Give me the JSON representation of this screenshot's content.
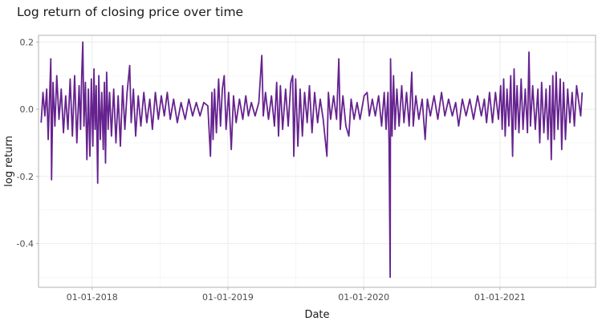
{
  "chart_data": {
    "type": "line",
    "title": "Log return of closing price over time",
    "xlabel": "Date",
    "ylabel": "log return",
    "x_axis": {
      "type": "date",
      "range": [
        "2017-08-10",
        "2021-09-15"
      ],
      "ticks": [
        {
          "date": "2018-01-01",
          "label": "01-01-2018"
        },
        {
          "date": "2019-01-01",
          "label": "01-01-2019"
        },
        {
          "date": "2020-01-01",
          "label": "01-01-2020"
        },
        {
          "date": "2021-01-01",
          "label": "01-01-2021"
        }
      ]
    },
    "y_axis": {
      "range": [
        -0.53,
        0.22
      ],
      "ticks": [
        {
          "value": 0.2,
          "label": "0.2"
        },
        {
          "value": 0.0,
          "label": "0.0"
        },
        {
          "value": -0.2,
          "label": "-0.2"
        },
        {
          "value": -0.4,
          "label": "-0.4"
        }
      ]
    },
    "grid": true,
    "legend": "none",
    "series": [
      {
        "color": "#66238f",
        "points": [
          [
            "2017-08-17",
            -0.04
          ],
          [
            "2017-08-22",
            0.05
          ],
          [
            "2017-08-27",
            -0.02
          ],
          [
            "2017-09-01",
            0.06
          ],
          [
            "2017-09-05",
            -0.09
          ],
          [
            "2017-09-08",
            0.01
          ],
          [
            "2017-09-12",
            0.15
          ],
          [
            "2017-09-14",
            -0.21
          ],
          [
            "2017-09-18",
            0.08
          ],
          [
            "2017-09-23",
            -0.05
          ],
          [
            "2017-09-28",
            0.1
          ],
          [
            "2017-10-04",
            -0.03
          ],
          [
            "2017-10-10",
            0.06
          ],
          [
            "2017-10-16",
            -0.07
          ],
          [
            "2017-10-22",
            0.04
          ],
          [
            "2017-10-28",
            -0.06
          ],
          [
            "2017-11-03",
            0.09
          ],
          [
            "2017-11-09",
            -0.08
          ],
          [
            "2017-11-15",
            0.1
          ],
          [
            "2017-11-21",
            -0.1
          ],
          [
            "2017-11-27",
            0.07
          ],
          [
            "2017-12-01",
            -0.06
          ],
          [
            "2017-12-04",
            0.1
          ],
          [
            "2017-12-07",
            0.2
          ],
          [
            "2017-12-10",
            -0.05
          ],
          [
            "2017-12-14",
            0.08
          ],
          [
            "2017-12-18",
            -0.15
          ],
          [
            "2017-12-22",
            0.06
          ],
          [
            "2017-12-26",
            -0.14
          ],
          [
            "2017-12-30",
            0.09
          ],
          [
            "2018-01-03",
            -0.11
          ],
          [
            "2018-01-06",
            0.12
          ],
          [
            "2018-01-09",
            -0.06
          ],
          [
            "2018-01-12",
            0.07
          ],
          [
            "2018-01-16",
            -0.22
          ],
          [
            "2018-01-19",
            0.1
          ],
          [
            "2018-01-23",
            -0.09
          ],
          [
            "2018-01-27",
            0.05
          ],
          [
            "2018-01-31",
            -0.12
          ],
          [
            "2018-02-03",
            0.08
          ],
          [
            "2018-02-06",
            -0.16
          ],
          [
            "2018-02-09",
            0.11
          ],
          [
            "2018-02-13",
            -0.06
          ],
          [
            "2018-02-17",
            0.05
          ],
          [
            "2018-02-22",
            -0.08
          ],
          [
            "2018-02-28",
            0.06
          ],
          [
            "2018-03-06",
            -0.1
          ],
          [
            "2018-03-12",
            0.04
          ],
          [
            "2018-03-18",
            -0.11
          ],
          [
            "2018-03-24",
            0.07
          ],
          [
            "2018-03-30",
            -0.06
          ],
          [
            "2018-04-05",
            0.05
          ],
          [
            "2018-04-12",
            0.13
          ],
          [
            "2018-04-16",
            -0.04
          ],
          [
            "2018-04-22",
            0.06
          ],
          [
            "2018-04-28",
            -0.08
          ],
          [
            "2018-05-05",
            0.04
          ],
          [
            "2018-05-12",
            -0.05
          ],
          [
            "2018-05-20",
            0.05
          ],
          [
            "2018-05-28",
            -0.04
          ],
          [
            "2018-06-05",
            0.03
          ],
          [
            "2018-06-12",
            -0.06
          ],
          [
            "2018-06-20",
            0.05
          ],
          [
            "2018-06-28",
            -0.03
          ],
          [
            "2018-07-06",
            0.04
          ],
          [
            "2018-07-14",
            -0.02
          ],
          [
            "2018-07-22",
            0.05
          ],
          [
            "2018-07-30",
            -0.03
          ],
          [
            "2018-08-08",
            0.03
          ],
          [
            "2018-08-18",
            -0.04
          ],
          [
            "2018-08-28",
            0.02
          ],
          [
            "2018-09-08",
            -0.03
          ],
          [
            "2018-09-18",
            0.03
          ],
          [
            "2018-09-28",
            -0.02
          ],
          [
            "2018-10-08",
            0.02
          ],
          [
            "2018-10-18",
            -0.02
          ],
          [
            "2018-10-28",
            0.02
          ],
          [
            "2018-11-08",
            0.01
          ],
          [
            "2018-11-15",
            -0.14
          ],
          [
            "2018-11-19",
            0.05
          ],
          [
            "2018-11-22",
            -0.09
          ],
          [
            "2018-11-26",
            0.06
          ],
          [
            "2018-12-01",
            -0.07
          ],
          [
            "2018-12-07",
            0.09
          ],
          [
            "2018-12-12",
            -0.05
          ],
          [
            "2018-12-17",
            0.06
          ],
          [
            "2018-12-22",
            0.1
          ],
          [
            "2018-12-27",
            -0.06
          ],
          [
            "2019-01-03",
            0.05
          ],
          [
            "2019-01-10",
            -0.12
          ],
          [
            "2019-01-16",
            0.04
          ],
          [
            "2019-01-23",
            -0.04
          ],
          [
            "2019-02-01",
            0.03
          ],
          [
            "2019-02-10",
            -0.03
          ],
          [
            "2019-02-18",
            0.04
          ],
          [
            "2019-02-25",
            -0.02
          ],
          [
            "2019-03-05",
            0.02
          ],
          [
            "2019-03-15",
            -0.02
          ],
          [
            "2019-03-25",
            0.02
          ],
          [
            "2019-04-02",
            0.16
          ],
          [
            "2019-04-06",
            -0.02
          ],
          [
            "2019-04-12",
            0.05
          ],
          [
            "2019-04-20",
            -0.03
          ],
          [
            "2019-04-28",
            0.04
          ],
          [
            "2019-05-06",
            -0.05
          ],
          [
            "2019-05-12",
            0.08
          ],
          [
            "2019-05-17",
            -0.08
          ],
          [
            "2019-05-22",
            0.07
          ],
          [
            "2019-05-28",
            -0.06
          ],
          [
            "2019-06-05",
            0.06
          ],
          [
            "2019-06-12",
            -0.05
          ],
          [
            "2019-06-19",
            0.08
          ],
          [
            "2019-06-24",
            0.1
          ],
          [
            "2019-06-27",
            -0.14
          ],
          [
            "2019-07-02",
            0.09
          ],
          [
            "2019-07-08",
            -0.11
          ],
          [
            "2019-07-14",
            0.06
          ],
          [
            "2019-07-20",
            -0.08
          ],
          [
            "2019-07-26",
            0.05
          ],
          [
            "2019-08-02",
            -0.04
          ],
          [
            "2019-08-08",
            0.07
          ],
          [
            "2019-08-15",
            -0.07
          ],
          [
            "2019-08-22",
            0.05
          ],
          [
            "2019-08-30",
            -0.04
          ],
          [
            "2019-09-06",
            0.03
          ],
          [
            "2019-09-14",
            -0.03
          ],
          [
            "2019-09-24",
            -0.14
          ],
          [
            "2019-09-28",
            0.05
          ],
          [
            "2019-10-04",
            -0.03
          ],
          [
            "2019-10-12",
            0.04
          ],
          [
            "2019-10-20",
            -0.03
          ],
          [
            "2019-10-26",
            0.15
          ],
          [
            "2019-10-30",
            -0.06
          ],
          [
            "2019-11-06",
            0.04
          ],
          [
            "2019-11-14",
            -0.05
          ],
          [
            "2019-11-22",
            -0.08
          ],
          [
            "2019-11-28",
            0.03
          ],
          [
            "2019-12-06",
            -0.03
          ],
          [
            "2019-12-14",
            0.02
          ],
          [
            "2019-12-22",
            -0.03
          ],
          [
            "2020-01-02",
            0.04
          ],
          [
            "2020-01-10",
            0.05
          ],
          [
            "2020-01-16",
            -0.02
          ],
          [
            "2020-01-24",
            0.03
          ],
          [
            "2020-02-01",
            -0.02
          ],
          [
            "2020-02-10",
            0.04
          ],
          [
            "2020-02-18",
            -0.05
          ],
          [
            "2020-02-25",
            0.05
          ],
          [
            "2020-03-01",
            -0.06
          ],
          [
            "2020-03-06",
            0.05
          ],
          [
            "2020-03-09",
            -0.1
          ],
          [
            "2020-03-12",
            -0.5
          ],
          [
            "2020-03-13",
            0.15
          ],
          [
            "2020-03-17",
            -0.08
          ],
          [
            "2020-03-21",
            0.1
          ],
          [
            "2020-03-25",
            -0.06
          ],
          [
            "2020-03-30",
            0.06
          ],
          [
            "2020-04-05",
            -0.05
          ],
          [
            "2020-04-12",
            0.07
          ],
          [
            "2020-04-18",
            -0.04
          ],
          [
            "2020-04-25",
            0.05
          ],
          [
            "2020-05-02",
            -0.05
          ],
          [
            "2020-05-09",
            0.11
          ],
          [
            "2020-05-13",
            -0.05
          ],
          [
            "2020-05-20",
            0.04
          ],
          [
            "2020-05-28",
            -0.03
          ],
          [
            "2020-06-06",
            0.03
          ],
          [
            "2020-06-14",
            -0.09
          ],
          [
            "2020-06-20",
            0.03
          ],
          [
            "2020-06-28",
            -0.02
          ],
          [
            "2020-07-08",
            0.04
          ],
          [
            "2020-07-18",
            -0.03
          ],
          [
            "2020-07-28",
            0.05
          ],
          [
            "2020-08-06",
            -0.02
          ],
          [
            "2020-08-16",
            0.03
          ],
          [
            "2020-08-26",
            -0.02
          ],
          [
            "2020-09-04",
            0.02
          ],
          [
            "2020-09-12",
            -0.05
          ],
          [
            "2020-09-22",
            0.03
          ],
          [
            "2020-10-02",
            -0.02
          ],
          [
            "2020-10-12",
            0.03
          ],
          [
            "2020-10-22",
            -0.03
          ],
          [
            "2020-11-02",
            0.04
          ],
          [
            "2020-11-12",
            -0.02
          ],
          [
            "2020-11-20",
            0.03
          ],
          [
            "2020-11-26",
            -0.04
          ],
          [
            "2020-12-04",
            0.05
          ],
          [
            "2020-12-12",
            -0.04
          ],
          [
            "2020-12-20",
            0.05
          ],
          [
            "2020-12-28",
            -0.03
          ],
          [
            "2021-01-03",
            0.07
          ],
          [
            "2021-01-07",
            -0.06
          ],
          [
            "2021-01-11",
            0.09
          ],
          [
            "2021-01-15",
            -0.08
          ],
          [
            "2021-01-20",
            0.06
          ],
          [
            "2021-01-25",
            -0.05
          ],
          [
            "2021-01-30",
            0.1
          ],
          [
            "2021-02-04",
            -0.14
          ],
          [
            "2021-02-08",
            0.12
          ],
          [
            "2021-02-12",
            -0.06
          ],
          [
            "2021-02-16",
            0.07
          ],
          [
            "2021-02-21",
            -0.07
          ],
          [
            "2021-02-27",
            0.09
          ],
          [
            "2021-03-04",
            -0.06
          ],
          [
            "2021-03-10",
            0.06
          ],
          [
            "2021-03-16",
            -0.07
          ],
          [
            "2021-03-20",
            0.17
          ],
          [
            "2021-03-24",
            -0.05
          ],
          [
            "2021-03-30",
            0.07
          ],
          [
            "2021-04-06",
            -0.06
          ],
          [
            "2021-04-13",
            0.06
          ],
          [
            "2021-04-18",
            -0.1
          ],
          [
            "2021-04-23",
            0.08
          ],
          [
            "2021-04-29",
            -0.07
          ],
          [
            "2021-05-05",
            0.06
          ],
          [
            "2021-05-10",
            -0.09
          ],
          [
            "2021-05-15",
            0.07
          ],
          [
            "2021-05-19",
            -0.15
          ],
          [
            "2021-05-23",
            0.1
          ],
          [
            "2021-05-27",
            -0.09
          ],
          [
            "2021-06-01",
            0.11
          ],
          [
            "2021-06-06",
            -0.06
          ],
          [
            "2021-06-12",
            0.09
          ],
          [
            "2021-06-16",
            -0.12
          ],
          [
            "2021-06-21",
            0.08
          ],
          [
            "2021-06-26",
            -0.09
          ],
          [
            "2021-07-02",
            0.06
          ],
          [
            "2021-07-08",
            -0.04
          ],
          [
            "2021-07-14",
            0.05
          ],
          [
            "2021-07-20",
            -0.05
          ],
          [
            "2021-07-26",
            0.07
          ],
          [
            "2021-08-01",
            0.02
          ],
          [
            "2021-08-06",
            -0.02
          ],
          [
            "2021-08-10",
            0.05
          ]
        ]
      }
    ]
  }
}
